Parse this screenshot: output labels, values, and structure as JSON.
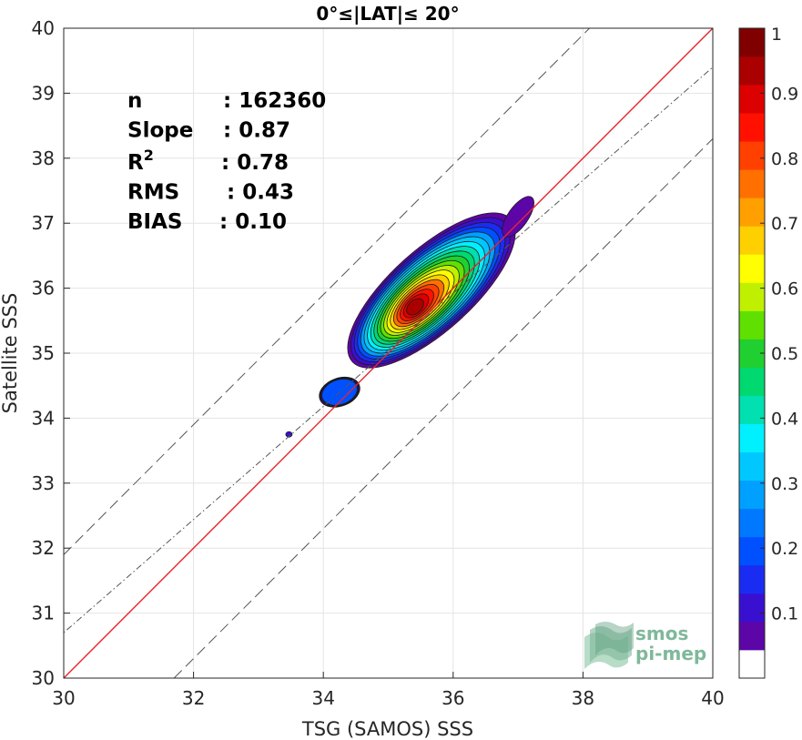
{
  "chart_data": {
    "type": "contour-density",
    "title": "0°≤|LAT|≤ 20°",
    "xlabel": "TSG (SAMOS) SSS",
    "ylabel": "Satellite SSS",
    "xlim": [
      30,
      40
    ],
    "ylim": [
      30,
      40
    ],
    "xticks": [
      "30",
      "32",
      "34",
      "36",
      "38",
      "40"
    ],
    "yticks": [
      "30",
      "31",
      "32",
      "33",
      "34",
      "35",
      "36",
      "37",
      "38",
      "39",
      "40"
    ],
    "grid": true,
    "stats": [
      {
        "label": "n",
        "value": ": 162360"
      },
      {
        "label": "Slope",
        "value": ": 0.87"
      },
      {
        "label": "R",
        "sup": "2",
        "value": ": 0.78"
      },
      {
        "label": "RMS",
        "value": ": 0.43"
      },
      {
        "label": "BIAS",
        "value": ": 0.10"
      }
    ],
    "lines": [
      {
        "name": "one-to-one",
        "style": "solid",
        "color": "#e8252a",
        "slope": 1,
        "intercept": 0
      },
      {
        "name": "regression",
        "style": "dash-dot",
        "color": "#555555",
        "slope": 0.87,
        "intercept": 4.6
      },
      {
        "name": "upper-bound",
        "style": "dashed",
        "color": "#555555",
        "slope": 1,
        "intercept": 1.9
      },
      {
        "name": "lower-bound",
        "style": "dashed",
        "color": "#555555",
        "slope": 1,
        "intercept": -1.7
      }
    ],
    "density_center": {
      "x": 35.4,
      "y": 35.7
    },
    "density_peak": 1,
    "contour_levels": [
      0.05,
      0.1,
      0.15,
      0.2,
      0.25,
      0.3,
      0.35,
      0.4,
      0.45,
      0.5,
      0.55,
      0.6,
      0.65,
      0.7,
      0.75,
      0.8,
      0.85,
      0.9,
      0.95
    ],
    "colorbar": {
      "range": [
        0,
        1
      ],
      "ticks": [
        "0.1",
        "0.2",
        "0.3",
        "0.4",
        "0.5",
        "0.6",
        "0.7",
        "0.8",
        "0.9",
        "1"
      ],
      "colors": [
        "#ffffff",
        "#5c06a8",
        "#3a10d0",
        "#1a2cf2",
        "#0050ff",
        "#0078ff",
        "#00a0ff",
        "#00c8ff",
        "#00f0ff",
        "#00e0b0",
        "#00d870",
        "#20d030",
        "#60e000",
        "#c0f000",
        "#ffff00",
        "#ffd000",
        "#ffa000",
        "#ff7000",
        "#ff4000",
        "#ff1000",
        "#dd0000",
        "#aa0000",
        "#800000"
      ]
    }
  },
  "logo": {
    "line1": "smos",
    "line2": "pi-mep"
  }
}
